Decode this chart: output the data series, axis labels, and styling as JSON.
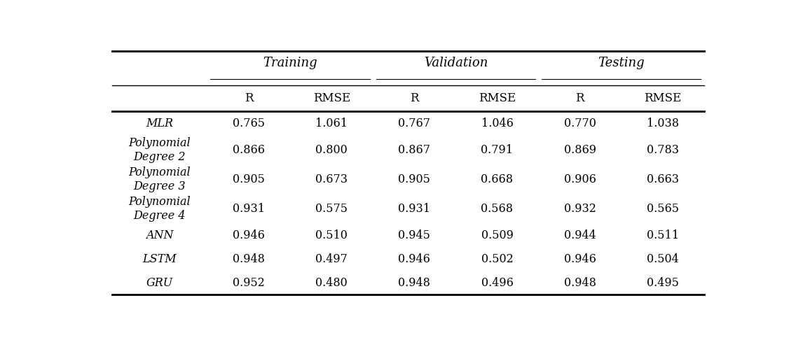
{
  "col_groups": [
    {
      "label": "Training",
      "cols": [
        "R",
        "RMSE"
      ]
    },
    {
      "label": "Validation",
      "cols": [
        "R",
        "RMSE"
      ]
    },
    {
      "label": "Testing",
      "cols": [
        "R",
        "RMSE"
      ]
    }
  ],
  "rows": [
    {
      "label": "MLR",
      "values": [
        0.765,
        1.061,
        0.767,
        1.046,
        0.77,
        1.038
      ]
    },
    {
      "label": "Polynomial\nDegree 2",
      "values": [
        0.866,
        0.8,
        0.867,
        0.791,
        0.869,
        0.783
      ]
    },
    {
      "label": "Polynomial\nDegree 3",
      "values": [
        0.905,
        0.673,
        0.905,
        0.668,
        0.906,
        0.663
      ]
    },
    {
      "label": "Polynomial\nDegree 4",
      "values": [
        0.931,
        0.575,
        0.931,
        0.568,
        0.932,
        0.565
      ]
    },
    {
      "label": "ANN",
      "values": [
        0.946,
        0.51,
        0.945,
        0.509,
        0.944,
        0.511
      ]
    },
    {
      "label": "LSTM",
      "values": [
        0.948,
        0.497,
        0.946,
        0.502,
        0.946,
        0.504
      ]
    },
    {
      "label": "GRU",
      "values": [
        0.952,
        0.48,
        0.948,
        0.496,
        0.948,
        0.495
      ]
    }
  ],
  "background_color": "#ffffff",
  "text_color": "#000000",
  "line_color": "#000000",
  "font_size_header_group": 13,
  "font_size_header_col": 12,
  "font_size_data": 11.5,
  "font_size_row_label": 11.5
}
